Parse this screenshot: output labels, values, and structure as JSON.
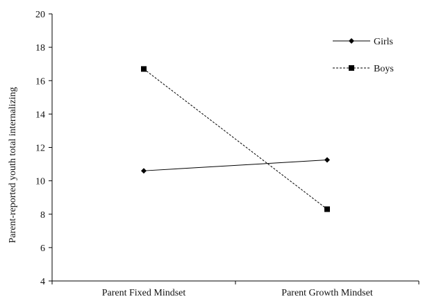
{
  "chart_data": {
    "type": "line",
    "title": "",
    "xlabel": "",
    "ylabel": "Parent-reported youth total internalizing",
    "categories": [
      "Parent Fixed Mindset",
      "Parent Growth Mindset"
    ],
    "ylim": [
      4,
      20
    ],
    "yticks": [
      4,
      6,
      8,
      10,
      12,
      14,
      16,
      18,
      20
    ],
    "grid": false,
    "legend_position": "top-right",
    "series": [
      {
        "name": "Girls",
        "values": [
          10.6,
          11.25
        ],
        "marker": "diamond",
        "line_style": "solid",
        "color": "#000000"
      },
      {
        "name": "Boys",
        "values": [
          16.7,
          8.3
        ],
        "marker": "square",
        "line_style": "dashed",
        "color": "#000000"
      }
    ]
  }
}
